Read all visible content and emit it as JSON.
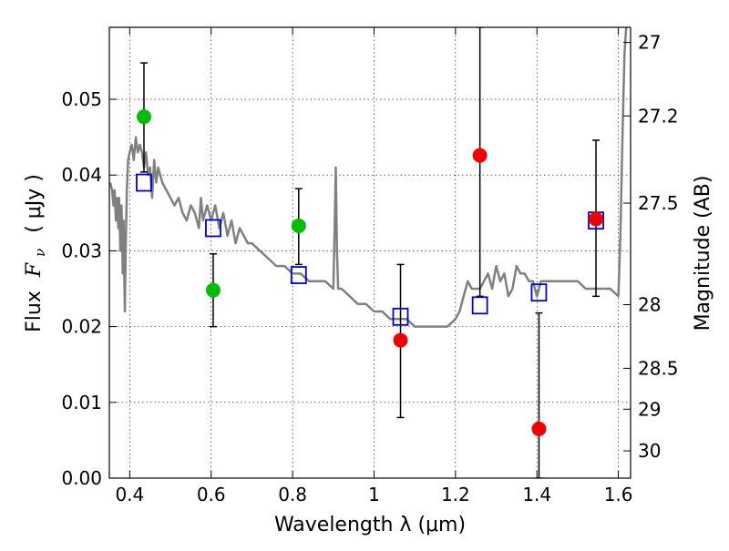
{
  "chart_data": {
    "type": "scatter",
    "title": "",
    "xlabel": "Wavelength  λ (μm)",
    "ylabel_parts": {
      "text": "Flux",
      "symbol_main": "F",
      "symbol_sub": "ν",
      "unit": "( μJy )"
    },
    "ylabel_right": "Magnitude (AB)",
    "xlim": [
      0.35,
      1.63
    ],
    "ylim": [
      0.0,
      0.0595
    ],
    "grid": true,
    "x_ticks": [
      "0.4",
      "0.6",
      "0.8",
      "1",
      "1.2",
      "1.4",
      "1.6"
    ],
    "y_ticks": [
      "0.00",
      "0.01",
      "0.02",
      "0.03",
      "0.04",
      "0.05"
    ],
    "right_ticks": [
      {
        "label": "27",
        "flux": 0.0575
      },
      {
        "label": "27.2",
        "flux": 0.0478
      },
      {
        "label": "27.5",
        "flux": 0.0363
      },
      {
        "label": "28",
        "flux": 0.0229
      },
      {
        "label": "28.5",
        "flux": 0.0145
      },
      {
        "label": "29",
        "flux": 0.0091
      },
      {
        "label": "30",
        "flux": 0.0036
      }
    ],
    "model_spectrum": {
      "color": "#808080",
      "x": [
        0.352,
        0.357,
        0.36,
        0.363,
        0.366,
        0.369,
        0.372,
        0.374,
        0.377,
        0.38,
        0.383,
        0.385,
        0.388,
        0.39,
        0.393,
        0.396,
        0.4,
        0.405,
        0.41,
        0.415,
        0.42,
        0.425,
        0.43,
        0.435,
        0.44,
        0.445,
        0.45,
        0.455,
        0.46,
        0.465,
        0.47,
        0.48,
        0.49,
        0.5,
        0.51,
        0.52,
        0.53,
        0.54,
        0.55,
        0.56,
        0.57,
        0.575,
        0.58,
        0.59,
        0.6,
        0.61,
        0.62,
        0.63,
        0.64,
        0.65,
        0.66,
        0.67,
        0.68,
        0.69,
        0.7,
        0.72,
        0.74,
        0.76,
        0.78,
        0.8,
        0.82,
        0.84,
        0.86,
        0.88,
        0.9,
        0.903,
        0.906,
        0.909,
        0.912,
        0.92,
        0.94,
        0.96,
        0.98,
        1.0,
        1.02,
        1.04,
        1.06,
        1.08,
        1.1,
        1.12,
        1.14,
        1.16,
        1.18,
        1.19,
        1.2,
        1.21,
        1.22,
        1.23,
        1.24,
        1.25,
        1.26,
        1.27,
        1.28,
        1.29,
        1.3,
        1.31,
        1.32,
        1.33,
        1.34,
        1.35,
        1.36,
        1.37,
        1.38,
        1.39,
        1.4,
        1.41,
        1.42,
        1.44,
        1.46,
        1.48,
        1.5,
        1.52,
        1.54,
        1.56,
        1.58,
        1.6,
        1.605,
        1.61,
        1.615,
        1.62
      ],
      "y": [
        0.039,
        0.038,
        0.036,
        0.038,
        0.034,
        0.037,
        0.033,
        0.037,
        0.03,
        0.036,
        0.027,
        0.034,
        0.022,
        0.03,
        0.038,
        0.042,
        0.043,
        0.044,
        0.042,
        0.045,
        0.043,
        0.044,
        0.043,
        0.041,
        0.043,
        0.04,
        0.041,
        0.037,
        0.042,
        0.039,
        0.041,
        0.039,
        0.038,
        0.037,
        0.036,
        0.037,
        0.035,
        0.034,
        0.036,
        0.035,
        0.033,
        0.037,
        0.034,
        0.036,
        0.034,
        0.036,
        0.033,
        0.035,
        0.032,
        0.034,
        0.031,
        0.033,
        0.032,
        0.031,
        0.031,
        0.03,
        0.029,
        0.028,
        0.028,
        0.027,
        0.027,
        0.026,
        0.026,
        0.026,
        0.025,
        0.032,
        0.041,
        0.03,
        0.025,
        0.025,
        0.024,
        0.023,
        0.023,
        0.022,
        0.022,
        0.021,
        0.021,
        0.021,
        0.02,
        0.02,
        0.02,
        0.02,
        0.02,
        0.0205,
        0.021,
        0.022,
        0.024,
        0.026,
        0.025,
        0.025,
        0.025,
        0.026,
        0.027,
        0.025,
        0.028,
        0.026,
        0.027,
        0.024,
        0.025,
        0.028,
        0.027,
        0.027,
        0.026,
        0.026,
        0.024,
        0.026,
        0.026,
        0.026,
        0.026,
        0.026,
        0.026,
        0.025,
        0.025,
        0.025,
        0.025,
        0.024,
        0.032,
        0.045,
        0.056,
        0.06
      ]
    },
    "model_points": {
      "color": "#0000cc",
      "x": [
        0.435,
        0.605,
        0.815,
        1.065,
        1.26,
        1.405,
        1.545
      ],
      "y": [
        0.039,
        0.033,
        0.0268,
        0.0213,
        0.0228,
        0.0245,
        0.034
      ]
    },
    "detections": {
      "color": "#00bb00",
      "x": [
        0.435,
        0.605,
        0.815
      ],
      "y": [
        0.0477,
        0.0248,
        0.0333
      ],
      "yerr_low": [
        0.0404,
        0.02,
        0.0282
      ],
      "yerr_high": [
        0.0548,
        0.0296,
        0.0382
      ]
    },
    "non_detections": {
      "color": "#ee0000",
      "x": [
        1.065,
        1.26,
        1.405,
        1.545
      ],
      "y": [
        0.0182,
        0.0426,
        0.0065,
        0.0342
      ],
      "yerr_low": [
        0.008,
        0.024,
        0.0,
        0.024
      ],
      "yerr_high": [
        0.0282,
        0.0595,
        0.0218,
        0.0446
      ]
    }
  }
}
